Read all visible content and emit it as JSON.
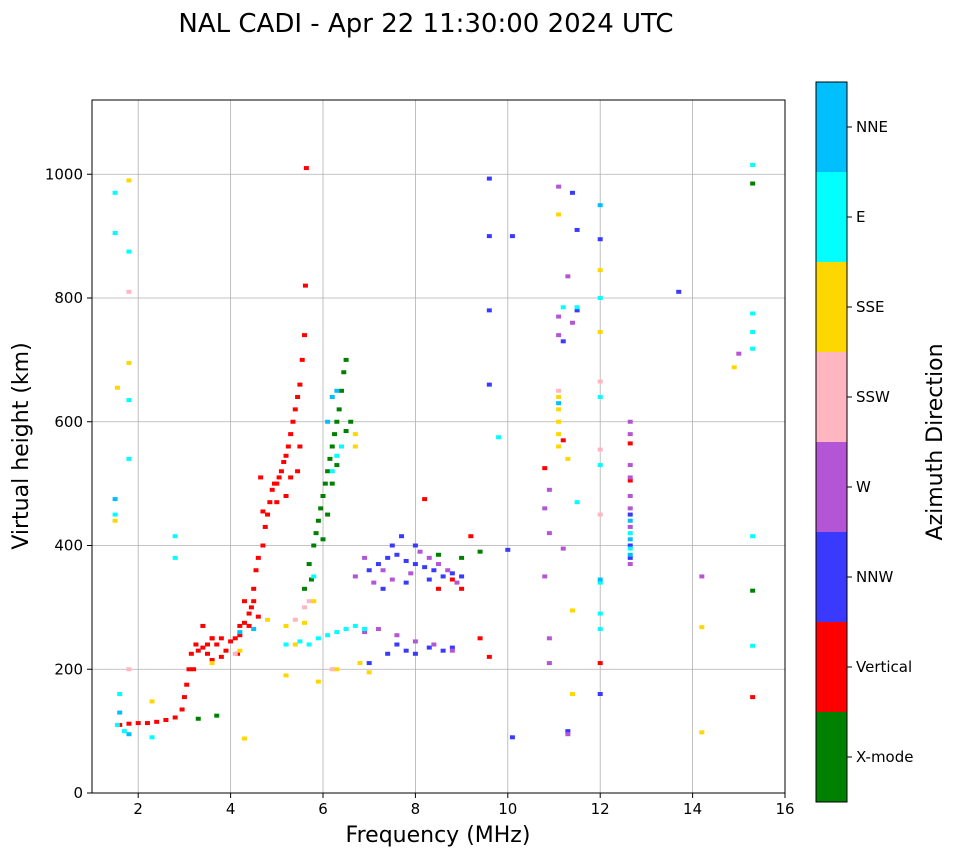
{
  "chart_data": {
    "type": "scatter",
    "title": "NAL CADI - Apr 22 11:30:00 2024 UTC",
    "xlabel": "Frequency (MHz)",
    "ylabel": "Virtual height (km)",
    "xlim": [
      1,
      16
    ],
    "ylim": [
      0,
      1120
    ],
    "xticks": [
      2,
      4,
      6,
      8,
      10,
      12,
      14,
      16
    ],
    "yticks": [
      0,
      200,
      400,
      600,
      800,
      1000
    ],
    "grid": true,
    "colorbar": {
      "title": "Azimuth Direction",
      "categories": [
        {
          "name": "X-mode",
          "color": "#008000"
        },
        {
          "name": "Vertical",
          "color": "#ff0000"
        },
        {
          "name": "NNW",
          "color": "#3a3aff"
        },
        {
          "name": "W",
          "color": "#b455d6"
        },
        {
          "name": "SSW",
          "color": "#ffb6c1"
        },
        {
          "name": "SSE",
          "color": "#ffd700"
        },
        {
          "name": "E",
          "color": "#00ffff"
        },
        {
          "name": "NNE",
          "color": "#00bfff"
        }
      ]
    },
    "series": [
      {
        "name": "Vertical",
        "points": [
          [
            1.6,
            110
          ],
          [
            1.8,
            112
          ],
          [
            2.0,
            113
          ],
          [
            2.2,
            113
          ],
          [
            2.4,
            115
          ],
          [
            2.6,
            118
          ],
          [
            2.8,
            122
          ],
          [
            2.95,
            135
          ],
          [
            3.0,
            155
          ],
          [
            3.05,
            175
          ],
          [
            3.1,
            200
          ],
          [
            3.15,
            225
          ],
          [
            3.25,
            240
          ],
          [
            3.4,
            235
          ],
          [
            3.5,
            225
          ],
          [
            3.6,
            215
          ],
          [
            3.7,
            240
          ],
          [
            3.8,
            220
          ],
          [
            3.9,
            230
          ],
          [
            4.0,
            245
          ],
          [
            4.1,
            250
          ],
          [
            4.15,
            225
          ],
          [
            4.2,
            270
          ],
          [
            4.3,
            275
          ],
          [
            4.4,
            290
          ],
          [
            4.45,
            300
          ],
          [
            4.5,
            330
          ],
          [
            4.55,
            360
          ],
          [
            4.6,
            380
          ],
          [
            4.7,
            400
          ],
          [
            4.75,
            430
          ],
          [
            4.8,
            450
          ],
          [
            4.85,
            470
          ],
          [
            4.9,
            490
          ],
          [
            5.0,
            500
          ],
          [
            5.05,
            510
          ],
          [
            5.1,
            520
          ],
          [
            5.15,
            535
          ],
          [
            5.2,
            545
          ],
          [
            5.25,
            560
          ],
          [
            5.3,
            580
          ],
          [
            5.35,
            600
          ],
          [
            5.4,
            620
          ],
          [
            5.45,
            640
          ],
          [
            5.5,
            660
          ],
          [
            5.55,
            700
          ],
          [
            5.6,
            740
          ],
          [
            5.62,
            820
          ],
          [
            5.64,
            1010
          ],
          [
            4.65,
            510
          ],
          [
            4.7,
            455
          ],
          [
            4.95,
            500
          ],
          [
            5.0,
            470
          ],
          [
            5.2,
            480
          ],
          [
            5.3,
            510
          ],
          [
            4.3,
            310
          ],
          [
            4.5,
            310
          ],
          [
            4.6,
            285
          ],
          [
            4.4,
            270
          ],
          [
            4.2,
            255
          ],
          [
            3.8,
            250
          ],
          [
            3.6,
            250
          ],
          [
            3.5,
            240
          ],
          [
            3.3,
            230
          ],
          [
            3.2,
            200
          ],
          [
            5.45,
            520
          ],
          [
            5.5,
            560
          ],
          [
            8.2,
            475
          ],
          [
            8.5,
            330
          ],
          [
            8.8,
            345
          ],
          [
            9.0,
            330
          ],
          [
            9.2,
            415
          ],
          [
            9.4,
            250
          ],
          [
            9.6,
            220
          ],
          [
            10.8,
            525
          ],
          [
            11.2,
            570
          ],
          [
            12.0,
            210
          ],
          [
            12.65,
            565
          ],
          [
            12.65,
            505
          ],
          [
            15.3,
            155
          ],
          [
            3.4,
            270
          ],
          [
            3.6,
            250
          ]
        ]
      },
      {
        "name": "X-mode",
        "points": [
          [
            3.3,
            120
          ],
          [
            3.7,
            125
          ],
          [
            5.7,
            370
          ],
          [
            5.8,
            400
          ],
          [
            5.85,
            420
          ],
          [
            5.9,
            440
          ],
          [
            5.95,
            460
          ],
          [
            6.0,
            480
          ],
          [
            6.05,
            500
          ],
          [
            6.1,
            520
          ],
          [
            6.15,
            540
          ],
          [
            6.2,
            560
          ],
          [
            6.25,
            580
          ],
          [
            6.3,
            600
          ],
          [
            6.35,
            620
          ],
          [
            6.4,
            650
          ],
          [
            6.45,
            680
          ],
          [
            6.5,
            700
          ],
          [
            6.0,
            410
          ],
          [
            6.1,
            450
          ],
          [
            6.2,
            500
          ],
          [
            6.3,
            530
          ],
          [
            6.4,
            560
          ],
          [
            6.5,
            585
          ],
          [
            6.6,
            600
          ],
          [
            5.6,
            330
          ],
          [
            5.75,
            345
          ],
          [
            15.3,
            985
          ],
          [
            15.3,
            327
          ],
          [
            9.4,
            390
          ],
          [
            8.5,
            385
          ],
          [
            9.0,
            380
          ]
        ]
      },
      {
        "name": "NNW",
        "points": [
          [
            7.0,
            360
          ],
          [
            7.2,
            370
          ],
          [
            7.4,
            380
          ],
          [
            7.6,
            385
          ],
          [
            7.8,
            375
          ],
          [
            8.0,
            370
          ],
          [
            8.2,
            365
          ],
          [
            8.4,
            360
          ],
          [
            8.6,
            350
          ],
          [
            8.8,
            355
          ],
          [
            9.0,
            350
          ],
          [
            7.5,
            400
          ],
          [
            7.7,
            415
          ],
          [
            8.0,
            400
          ],
          [
            7.3,
            330
          ],
          [
            7.8,
            340
          ],
          [
            8.3,
            345
          ],
          [
            7.6,
            240
          ],
          [
            7.8,
            230
          ],
          [
            8.0,
            225
          ],
          [
            8.3,
            235
          ],
          [
            8.6,
            230
          ],
          [
            8.8,
            235
          ],
          [
            7.0,
            210
          ],
          [
            7.4,
            225
          ],
          [
            9.6,
            993
          ],
          [
            9.6,
            900
          ],
          [
            10.1,
            900
          ],
          [
            9.6,
            780
          ],
          [
            9.6,
            660
          ],
          [
            10.0,
            393
          ],
          [
            10.1,
            90
          ],
          [
            11.4,
            970
          ],
          [
            11.5,
            910
          ],
          [
            11.2,
            730
          ],
          [
            11.5,
            780
          ],
          [
            12.0,
            895
          ],
          [
            12.0,
            160
          ],
          [
            11.3,
            100
          ],
          [
            13.7,
            810
          ],
          [
            12.65,
            400
          ],
          [
            12.65,
            450
          ],
          [
            12.65,
            380
          ]
        ]
      },
      {
        "name": "W",
        "points": [
          [
            6.7,
            350
          ],
          [
            6.9,
            380
          ],
          [
            7.1,
            340
          ],
          [
            7.3,
            360
          ],
          [
            7.5,
            345
          ],
          [
            7.9,
            355
          ],
          [
            8.1,
            390
          ],
          [
            8.3,
            380
          ],
          [
            8.5,
            370
          ],
          [
            8.7,
            360
          ],
          [
            8.9,
            340
          ],
          [
            7.2,
            265
          ],
          [
            7.6,
            255
          ],
          [
            8.0,
            245
          ],
          [
            8.4,
            240
          ],
          [
            8.8,
            230
          ],
          [
            6.9,
            260
          ],
          [
            10.8,
            460
          ],
          [
            10.9,
            490
          ],
          [
            10.9,
            420
          ],
          [
            10.9,
            250
          ],
          [
            10.9,
            210
          ],
          [
            10.8,
            350
          ],
          [
            11.1,
            980
          ],
          [
            11.3,
            835
          ],
          [
            11.4,
            760
          ],
          [
            11.1,
            770
          ],
          [
            11.1,
            740
          ],
          [
            11.2,
            395
          ],
          [
            11.3,
            95
          ],
          [
            14.2,
            350
          ],
          [
            15.0,
            710
          ],
          [
            12.65,
            600
          ],
          [
            12.65,
            580
          ],
          [
            12.65,
            530
          ],
          [
            12.65,
            510
          ],
          [
            12.65,
            480
          ],
          [
            12.65,
            460
          ],
          [
            12.65,
            430
          ],
          [
            12.65,
            370
          ]
        ]
      },
      {
        "name": "SSW",
        "points": [
          [
            1.8,
            810
          ],
          [
            1.8,
            200
          ],
          [
            4.1,
            225
          ],
          [
            5.4,
            280
          ],
          [
            5.6,
            300
          ],
          [
            5.7,
            310
          ],
          [
            11.1,
            650
          ],
          [
            12.0,
            665
          ],
          [
            12.0,
            555
          ],
          [
            12.0,
            450
          ],
          [
            6.2,
            200
          ]
        ]
      },
      {
        "name": "SSE",
        "points": [
          [
            1.55,
            655
          ],
          [
            1.5,
            440
          ],
          [
            1.8,
            695
          ],
          [
            1.8,
            990
          ],
          [
            2.3,
            148
          ],
          [
            3.6,
            210
          ],
          [
            4.2,
            230
          ],
          [
            4.3,
            88
          ],
          [
            4.8,
            280
          ],
          [
            5.2,
            270
          ],
          [
            5.4,
            240
          ],
          [
            5.6,
            275
          ],
          [
            5.8,
            310
          ],
          [
            5.9,
            180
          ],
          [
            6.3,
            200
          ],
          [
            6.8,
            210
          ],
          [
            7.0,
            195
          ],
          [
            6.7,
            580
          ],
          [
            6.7,
            560
          ],
          [
            11.1,
            935
          ],
          [
            11.1,
            640
          ],
          [
            11.1,
            620
          ],
          [
            11.1,
            600
          ],
          [
            11.1,
            580
          ],
          [
            11.1,
            560
          ],
          [
            11.3,
            540
          ],
          [
            11.4,
            295
          ],
          [
            11.4,
            160
          ],
          [
            12.0,
            845
          ],
          [
            12.0,
            745
          ],
          [
            14.2,
            268
          ],
          [
            14.2,
            98
          ],
          [
            14.9,
            688
          ],
          [
            5.2,
            190
          ]
        ]
      },
      {
        "name": "E",
        "points": [
          [
            1.5,
            970
          ],
          [
            1.5,
            905
          ],
          [
            1.8,
            875
          ],
          [
            1.8,
            635
          ],
          [
            1.8,
            540
          ],
          [
            1.5,
            450
          ],
          [
            1.6,
            160
          ],
          [
            1.55,
            110
          ],
          [
            1.7,
            100
          ],
          [
            2.3,
            90
          ],
          [
            2.8,
            415
          ],
          [
            2.8,
            380
          ],
          [
            5.2,
            240
          ],
          [
            5.5,
            245
          ],
          [
            5.7,
            240
          ],
          [
            5.9,
            250
          ],
          [
            6.1,
            255
          ],
          [
            6.3,
            260
          ],
          [
            6.5,
            265
          ],
          [
            6.7,
            270
          ],
          [
            6.9,
            265
          ],
          [
            5.8,
            350
          ],
          [
            6.2,
            520
          ],
          [
            6.3,
            545
          ],
          [
            6.4,
            560
          ],
          [
            11.2,
            785
          ],
          [
            11.5,
            785
          ],
          [
            12.0,
            800
          ],
          [
            12.0,
            640
          ],
          [
            12.0,
            530
          ],
          [
            12.0,
            340
          ],
          [
            12.0,
            290
          ],
          [
            12.0,
            265
          ],
          [
            11.5,
            470
          ],
          [
            9.8,
            575
          ],
          [
            15.3,
            1015
          ],
          [
            15.3,
            775
          ],
          [
            15.3,
            745
          ],
          [
            15.3,
            718
          ],
          [
            15.3,
            415
          ],
          [
            15.3,
            238
          ],
          [
            12.65,
            420
          ],
          [
            12.65,
            395
          ]
        ]
      },
      {
        "name": "NNE",
        "points": [
          [
            1.5,
            475
          ],
          [
            1.6,
            130
          ],
          [
            1.8,
            95
          ],
          [
            6.2,
            640
          ],
          [
            6.3,
            650
          ],
          [
            6.1,
            600
          ],
          [
            11.1,
            630
          ],
          [
            12.0,
            950
          ],
          [
            12.0,
            345
          ],
          [
            12.65,
            440
          ],
          [
            12.65,
            410
          ],
          [
            12.65,
            385
          ],
          [
            4.5,
            265
          ],
          [
            4.2,
            260
          ]
        ]
      }
    ]
  }
}
